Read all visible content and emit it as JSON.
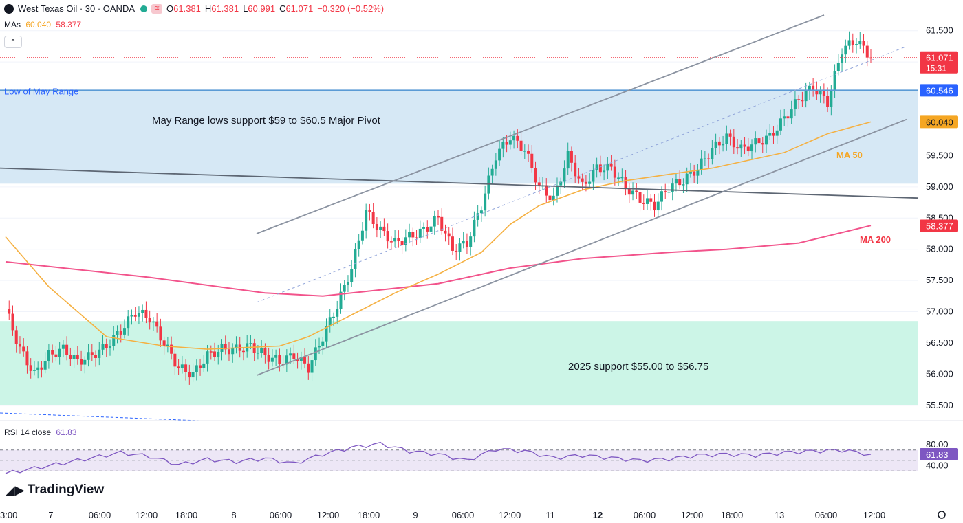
{
  "header": {
    "symbol": "West Texas Oil · 30 · OANDA",
    "open_label": "O",
    "open": "61.381",
    "high_label": "H",
    "high": "61.381",
    "low_label": "L",
    "low": "60.991",
    "close_label": "C",
    "close": "61.071",
    "change": "−0.320 (−0.52%)"
  },
  "mas": {
    "label": "MAs",
    "ma50_value": "60.040",
    "ma200_value": "58.377"
  },
  "rsi": {
    "label": "RSI 14 close",
    "value": "61.83"
  },
  "logo": {
    "text": "TradingView"
  },
  "colors": {
    "up": "#22ab94",
    "down": "#f23645",
    "ma50": "#f5b041",
    "ma200": "#f2538b",
    "rsi": "#7e57c2",
    "trendline": "#8b93a1",
    "blue_zone": "#d6e8f5",
    "green_zone": "#ccf5e7"
  },
  "chart_data": {
    "type": "candlestick",
    "title": "West Texas Oil · 30 · OANDA",
    "ylim": [
      55.3,
      61.75
    ],
    "y_ticks": [
      "61.500",
      "61.000",
      "60.500",
      "60.000",
      "59.500",
      "59.000",
      "58.500",
      "58.000",
      "57.500",
      "57.000",
      "56.500",
      "56.000",
      "55.500"
    ],
    "x_tick_labels": [
      "3:00",
      "7",
      "06:00",
      "12:00",
      "18:00",
      "8",
      "06:00",
      "12:00",
      "18:00",
      "9",
      "06:00",
      "12:00",
      "11",
      "12",
      "06:00",
      "12:00",
      "18:00",
      "13",
      "06:00",
      "12:00"
    ],
    "x_tick_bold": "12",
    "price_labels": [
      {
        "value": 61.071,
        "text": "61.071",
        "sub": "15:31",
        "color": "#f23645"
      },
      {
        "value": 60.546,
        "text": "60.546",
        "color": "#2962ff"
      },
      {
        "value": 60.04,
        "text": "60.040",
        "color": "#f5a623"
      },
      {
        "value": 58.377,
        "text": "58.377",
        "color": "#f23645"
      }
    ],
    "zones": [
      {
        "name": "May Range lows support $59 to $60.5 Major Pivot",
        "from": 59.05,
        "to": 60.55
      },
      {
        "name": "2025 support $55.00 to $56.75",
        "from": 55.5,
        "to": 56.85
      }
    ],
    "horizontal_line": {
      "label": "Low of May Range",
      "value": 60.546
    },
    "series_labels": [
      {
        "name": "MA 50"
      },
      {
        "name": "MA 200"
      }
    ],
    "close_path": [
      [
        0,
        57.05
      ],
      [
        1,
        56.4
      ],
      [
        2,
        56.0
      ],
      [
        3,
        56.3
      ],
      [
        4,
        56.4
      ],
      [
        5,
        56.2
      ],
      [
        6,
        56.3
      ],
      [
        7,
        56.45
      ],
      [
        8,
        56.7
      ],
      [
        9,
        57.0
      ],
      [
        10,
        56.9
      ],
      [
        11,
        56.5
      ],
      [
        12,
        56.1
      ],
      [
        13,
        56.0
      ],
      [
        14,
        56.3
      ],
      [
        15,
        56.4
      ],
      [
        16,
        56.4
      ],
      [
        17,
        56.45
      ],
      [
        18,
        56.3
      ],
      [
        19,
        56.2
      ],
      [
        20,
        56.3
      ],
      [
        21,
        56.1
      ],
      [
        22,
        56.6
      ],
      [
        23,
        57.1
      ],
      [
        24,
        57.7
      ],
      [
        25,
        58.6
      ],
      [
        26,
        58.3
      ],
      [
        27,
        58.1
      ],
      [
        28,
        58.2
      ],
      [
        29,
        58.3
      ],
      [
        30,
        58.5
      ],
      [
        31,
        58.0
      ],
      [
        32,
        58.1
      ],
      [
        33,
        58.7
      ],
      [
        34,
        59.5
      ],
      [
        35,
        59.8
      ],
      [
        36,
        59.6
      ],
      [
        37,
        59.0
      ],
      [
        38,
        58.8
      ],
      [
        39,
        59.5
      ],
      [
        40,
        59.0
      ],
      [
        41,
        59.3
      ],
      [
        42,
        59.3
      ],
      [
        43,
        59.0
      ],
      [
        44,
        58.8
      ],
      [
        45,
        58.7
      ],
      [
        46,
        59.0
      ],
      [
        47,
        59.1
      ],
      [
        48,
        59.3
      ],
      [
        49,
        59.6
      ],
      [
        50,
        59.8
      ],
      [
        51,
        59.6
      ],
      [
        52,
        59.7
      ],
      [
        53,
        59.8
      ],
      [
        54,
        60.1
      ],
      [
        55,
        60.4
      ],
      [
        56,
        60.6
      ],
      [
        57,
        60.35
      ],
      [
        58,
        61.2
      ],
      [
        59,
        61.35
      ],
      [
        60,
        61.07
      ]
    ],
    "ma50_path": [
      [
        0,
        58.2
      ],
      [
        3,
        57.4
      ],
      [
        7,
        56.6
      ],
      [
        11,
        56.45
      ],
      [
        14,
        56.4
      ],
      [
        19,
        56.45
      ],
      [
        21,
        56.6
      ],
      [
        24,
        56.95
      ],
      [
        27,
        57.3
      ],
      [
        30,
        57.6
      ],
      [
        33,
        57.95
      ],
      [
        35,
        58.4
      ],
      [
        37,
        58.7
      ],
      [
        40,
        58.95
      ],
      [
        43,
        59.1
      ],
      [
        46,
        59.2
      ],
      [
        49,
        59.3
      ],
      [
        51,
        59.4
      ],
      [
        54,
        59.55
      ],
      [
        57,
        59.85
      ],
      [
        60,
        60.04
      ]
    ],
    "ma200_path": [
      [
        0,
        57.8
      ],
      [
        10,
        57.55
      ],
      [
        18,
        57.3
      ],
      [
        22,
        57.25
      ],
      [
        30,
        57.45
      ],
      [
        35,
        57.7
      ],
      [
        40,
        57.85
      ],
      [
        46,
        57.95
      ],
      [
        50,
        58.0
      ],
      [
        55,
        58.1
      ],
      [
        60,
        58.38
      ]
    ],
    "rsi_path": [
      [
        0,
        25
      ],
      [
        2,
        35
      ],
      [
        4,
        45
      ],
      [
        6,
        55
      ],
      [
        8,
        65
      ],
      [
        10,
        58
      ],
      [
        12,
        42
      ],
      [
        14,
        52
      ],
      [
        16,
        48
      ],
      [
        18,
        54
      ],
      [
        20,
        44
      ],
      [
        22,
        62
      ],
      [
        24,
        75
      ],
      [
        26,
        82
      ],
      [
        28,
        68
      ],
      [
        30,
        62
      ],
      [
        32,
        50
      ],
      [
        34,
        72
      ],
      [
        36,
        68
      ],
      [
        38,
        55
      ],
      [
        40,
        60
      ],
      [
        42,
        55
      ],
      [
        44,
        50
      ],
      [
        46,
        53
      ],
      [
        48,
        60
      ],
      [
        50,
        62
      ],
      [
        52,
        60
      ],
      [
        54,
        65
      ],
      [
        56,
        68
      ],
      [
        58,
        70
      ],
      [
        60,
        61.83
      ]
    ],
    "rsi_ticks": [
      "80.00",
      "40.00"
    ]
  }
}
